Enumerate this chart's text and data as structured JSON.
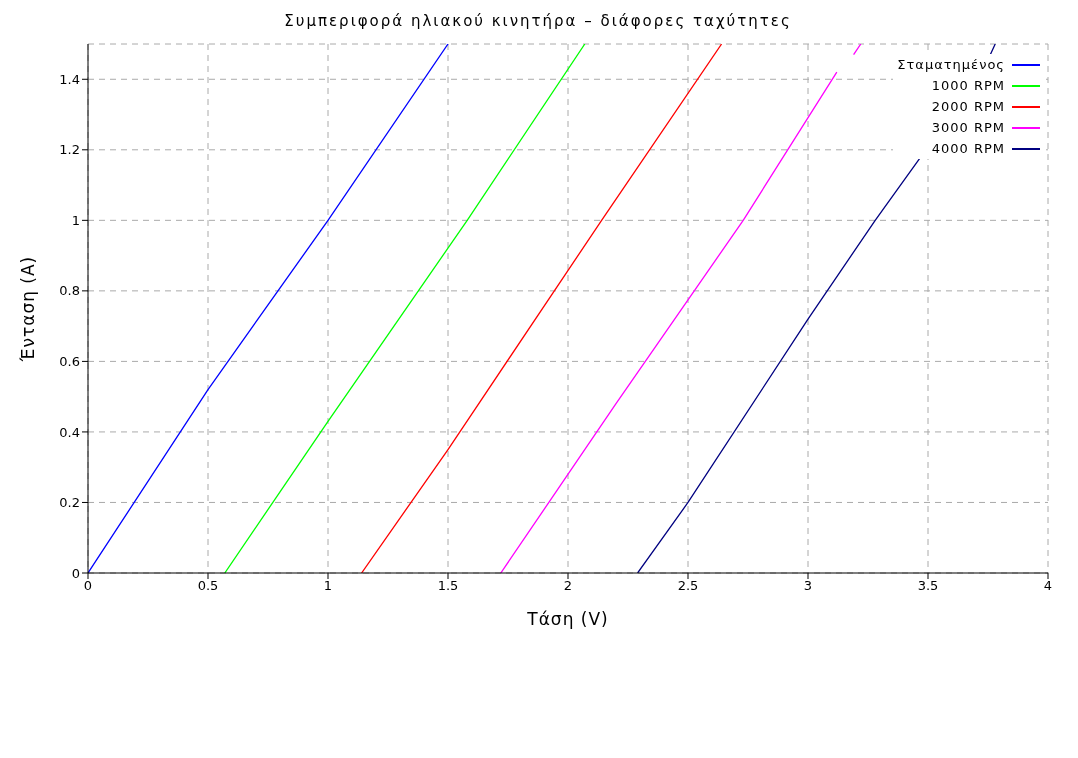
{
  "chart_data": {
    "type": "line",
    "title": "Συμπεριφορά ηλιακού κινητήρα – διάφορες ταχύτητες",
    "xlabel": "Τάση (V)",
    "ylabel": "Ένταση (A)",
    "xlim": [
      0,
      4
    ],
    "xticks": [
      0,
      0.5,
      1,
      1.5,
      2,
      2.5,
      3,
      3.5,
      4
    ],
    "ylim": [
      0,
      1.5
    ],
    "yticks": [
      0,
      0.2,
      0.4,
      0.6,
      0.8,
      1,
      1.2,
      1.4
    ],
    "grid": true,
    "legend": "top right",
    "marker": "none",
    "line_style": "solid",
    "series": [
      {
        "name": "Σταματημένος",
        "color": "#0000ff",
        "x": [
          0,
          0.5,
          1,
          1.5
        ],
        "values": [
          0,
          0.52,
          1,
          1.5
        ]
      },
      {
        "name": "1000 RPM",
        "color": "#00ff00",
        "x": [
          0.57,
          1,
          1.58,
          2.07
        ],
        "values": [
          0,
          0.43,
          1,
          1.5
        ]
      },
      {
        "name": "2000 RPM",
        "color": "#ff0000",
        "x": [
          1.14,
          1.5,
          2.14,
          2.64
        ],
        "values": [
          0,
          0.35,
          1,
          1.5
        ]
      },
      {
        "name": "3000 RPM",
        "color": "#ff00ff",
        "x": [
          1.72,
          2.2,
          2.73,
          3.12,
          3.16,
          3.19,
          3.22
        ],
        "values": [
          0,
          0.48,
          1,
          1.42,
          null,
          1.47,
          1.5
        ]
      },
      {
        "name": "4000 RPM",
        "color": "#000080",
        "x": [
          2.29,
          2.5,
          3,
          3.28,
          3.47,
          3.6,
          3.76,
          3.78
        ],
        "values": [
          0,
          0.2,
          0.72,
          1,
          1.18,
          null,
          1.47,
          1.5
        ]
      }
    ]
  }
}
